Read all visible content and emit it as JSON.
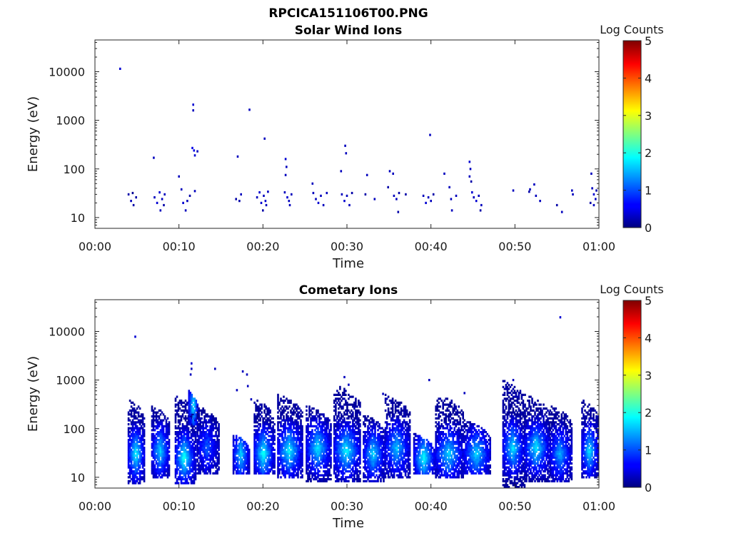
{
  "figure": {
    "title": "RPCICA151106T00.PNG"
  },
  "chart_data": [
    {
      "type": "heatmap",
      "title": "Solar Wind Ions",
      "xlabel": "Time",
      "ylabel": "Energy (eV)",
      "yscale": "log",
      "xlim": [
        0,
        60
      ],
      "ylim": [
        6,
        45000
      ],
      "x_ticks": [
        "00:00",
        "00:10",
        "00:20",
        "00:30",
        "00:40",
        "00:50",
        "01:00"
      ],
      "y_ticks": [
        "10",
        "100",
        "1000",
        "10000"
      ],
      "colorbar": {
        "label": "Log Counts",
        "range": [
          0,
          5
        ],
        "ticks": [
          "0",
          "1",
          "2",
          "3",
          "4",
          "5"
        ],
        "colormap": "jet"
      },
      "points": [
        [
          3.0,
          11500,
          0.4
        ],
        [
          4.0,
          30,
          0.2
        ],
        [
          4.3,
          22,
          0.3
        ],
        [
          4.6,
          18,
          0.2
        ],
        [
          4.9,
          26,
          0.2
        ],
        [
          4.5,
          32,
          0.1
        ],
        [
          7.0,
          170,
          0.3
        ],
        [
          7.1,
          26,
          0.3
        ],
        [
          7.4,
          20,
          0.4
        ],
        [
          7.7,
          33,
          0.4
        ],
        [
          8.0,
          24,
          0.3
        ],
        [
          7.8,
          14,
          0.3
        ],
        [
          8.3,
          30,
          0.3
        ],
        [
          8.2,
          18,
          0.2
        ],
        [
          10.0,
          70,
          0.3
        ],
        [
          10.3,
          38,
          0.3
        ],
        [
          10.5,
          20,
          0.4
        ],
        [
          10.8,
          14,
          0.3
        ],
        [
          11.0,
          22,
          0.3
        ],
        [
          11.3,
          28,
          0.2
        ],
        [
          11.7,
          2100,
          0.4
        ],
        [
          11.7,
          1600,
          0.3
        ],
        [
          11.6,
          270,
          0.5
        ],
        [
          11.8,
          240,
          0.5
        ],
        [
          11.9,
          190,
          0.4
        ],
        [
          12.2,
          230,
          0.3
        ],
        [
          11.9,
          35,
          0.3
        ],
        [
          17.0,
          180,
          0.3
        ],
        [
          16.8,
          24,
          0.2
        ],
        [
          17.4,
          30,
          0.3
        ],
        [
          17.2,
          22,
          0.2
        ],
        [
          18.4,
          1650,
          0.3
        ],
        [
          20.2,
          420,
          0.3
        ],
        [
          19.3,
          26,
          0.3
        ],
        [
          19.6,
          33,
          0.4
        ],
        [
          19.8,
          20,
          0.4
        ],
        [
          20.1,
          28,
          0.3
        ],
        [
          20.3,
          22,
          0.4
        ],
        [
          20.6,
          34,
          0.3
        ],
        [
          20.4,
          18,
          0.3
        ],
        [
          20.0,
          14,
          0.2
        ],
        [
          22.7,
          160,
          0.4
        ],
        [
          22.8,
          110,
          0.3
        ],
        [
          22.7,
          75,
          0.3
        ],
        [
          22.6,
          33,
          0.3
        ],
        [
          22.9,
          26,
          0.4
        ],
        [
          23.1,
          22,
          0.3
        ],
        [
          23.4,
          30,
          0.3
        ],
        [
          23.2,
          18,
          0.3
        ],
        [
          25.9,
          50,
          0.3
        ],
        [
          26.0,
          32,
          0.3
        ],
        [
          26.3,
          24,
          0.3
        ],
        [
          26.6,
          20,
          0.4
        ],
        [
          26.9,
          28,
          0.3
        ],
        [
          27.2,
          18,
          0.3
        ],
        [
          27.6,
          32,
          0.3
        ],
        [
          29.8,
          300,
          0.3
        ],
        [
          29.9,
          210,
          0.3
        ],
        [
          29.3,
          90,
          0.3
        ],
        [
          29.4,
          30,
          0.3
        ],
        [
          29.7,
          22,
          0.4
        ],
        [
          30.0,
          28,
          0.3
        ],
        [
          30.3,
          18,
          0.3
        ],
        [
          30.6,
          32,
          0.2
        ],
        [
          32.4,
          75,
          0.3
        ],
        [
          32.2,
          30,
          0.2
        ],
        [
          33.3,
          24,
          0.3
        ],
        [
          35.1,
          90,
          0.3
        ],
        [
          35.5,
          80,
          0.3
        ],
        [
          34.9,
          42,
          0.2
        ],
        [
          35.6,
          28,
          0.3
        ],
        [
          35.9,
          24,
          0.3
        ],
        [
          36.2,
          32,
          0.2
        ],
        [
          36.1,
          13,
          0.2
        ],
        [
          37.0,
          30,
          0.2
        ],
        [
          39.9,
          500,
          0.3
        ],
        [
          39.1,
          28,
          0.3
        ],
        [
          39.4,
          20,
          0.4
        ],
        [
          39.7,
          26,
          0.3
        ],
        [
          40.0,
          22,
          0.3
        ],
        [
          40.3,
          30,
          0.2
        ],
        [
          41.6,
          80,
          0.3
        ],
        [
          42.2,
          42,
          0.3
        ],
        [
          42.4,
          24,
          0.3
        ],
        [
          42.5,
          14,
          0.3
        ],
        [
          43.0,
          28,
          0.3
        ],
        [
          44.6,
          140,
          0.4
        ],
        [
          44.7,
          100,
          0.3
        ],
        [
          44.6,
          70,
          0.3
        ],
        [
          44.8,
          55,
          0.2
        ],
        [
          44.9,
          33,
          0.4
        ],
        [
          45.1,
          26,
          0.3
        ],
        [
          45.4,
          22,
          0.4
        ],
        [
          45.7,
          28,
          0.3
        ],
        [
          46.0,
          18,
          0.3
        ],
        [
          45.9,
          14,
          0.2
        ],
        [
          49.8,
          36,
          0.3
        ],
        [
          51.8,
          38,
          0.3
        ],
        [
          51.7,
          34,
          0.2
        ],
        [
          52.3,
          48,
          0.3
        ],
        [
          52.5,
          28,
          0.3
        ],
        [
          53.0,
          22,
          0.3
        ],
        [
          55.0,
          18,
          0.2
        ],
        [
          55.6,
          13,
          0.3
        ],
        [
          56.8,
          36,
          0.3
        ],
        [
          56.9,
          30,
          0.3
        ],
        [
          59.1,
          80,
          0.3
        ],
        [
          59.2,
          40,
          0.3
        ],
        [
          59.4,
          30,
          0.4
        ],
        [
          59.6,
          24,
          0.3
        ],
        [
          59.7,
          36,
          0.2
        ],
        [
          59.4,
          18,
          0.3
        ],
        [
          59.0,
          20,
          0.2
        ]
      ]
    },
    {
      "type": "heatmap",
      "title": "Cometary Ions",
      "xlabel": "Time",
      "ylabel": "Energy (eV)",
      "yscale": "log",
      "xlim": [
        0,
        60
      ],
      "ylim": [
        6,
        45000
      ],
      "x_ticks": [
        "00:00",
        "00:10",
        "00:20",
        "00:30",
        "00:40",
        "00:50",
        "01:00"
      ],
      "y_ticks": [
        "10",
        "100",
        "1000",
        "10000"
      ],
      "colorbar": {
        "label": "Log Counts",
        "range": [
          0,
          5
        ],
        "ticks": [
          "0",
          "1",
          "2",
          "3",
          "4",
          "5"
        ],
        "colormap": "jet"
      },
      "features": [
        {
          "x": 4.0,
          "w": 2.0,
          "emin": 7,
          "emax": 400,
          "peak": 1.8,
          "peak_e": 30
        },
        {
          "x": 6.8,
          "w": 2.2,
          "emin": 10,
          "emax": 300,
          "peak": 1.6,
          "peak_e": 35
        },
        {
          "x": 9.6,
          "w": 2.4,
          "emin": 7,
          "emax": 500,
          "peak": 1.9,
          "peak_e": 25
        },
        {
          "x": 11.2,
          "w": 1.2,
          "emin": 120,
          "emax": 600,
          "peak": 1.8,
          "peak_e": 300
        },
        {
          "x": 12.2,
          "w": 2.6,
          "emin": 12,
          "emax": 300,
          "peak": 1.0,
          "peak_e": 40
        },
        {
          "x": 16.5,
          "w": 2.0,
          "emin": 12,
          "emax": 80,
          "peak": 1.6,
          "peak_e": 30
        },
        {
          "x": 19.0,
          "w": 2.4,
          "emin": 12,
          "emax": 400,
          "peak": 1.9,
          "peak_e": 30
        },
        {
          "x": 21.8,
          "w": 3.0,
          "emin": 10,
          "emax": 500,
          "peak": 1.8,
          "peak_e": 35
        },
        {
          "x": 25.2,
          "w": 3.0,
          "emin": 8,
          "emax": 300,
          "peak": 1.7,
          "peak_e": 40
        },
        {
          "x": 28.5,
          "w": 3.2,
          "emin": 8,
          "emax": 800,
          "peak": 1.8,
          "peak_e": 35
        },
        {
          "x": 32.0,
          "w": 2.6,
          "emin": 8,
          "emax": 200,
          "peak": 1.6,
          "peak_e": 30
        },
        {
          "x": 34.6,
          "w": 3.0,
          "emin": 10,
          "emax": 500,
          "peak": 1.5,
          "peak_e": 40
        },
        {
          "x": 38.0,
          "w": 2.6,
          "emin": 12,
          "emax": 80,
          "peak": 1.8,
          "peak_e": 25
        },
        {
          "x": 40.6,
          "w": 3.4,
          "emin": 10,
          "emax": 500,
          "peak": 1.6,
          "peak_e": 30
        },
        {
          "x": 44.0,
          "w": 3.2,
          "emin": 12,
          "emax": 150,
          "peak": 1.6,
          "peak_e": 30
        },
        {
          "x": 48.6,
          "w": 2.6,
          "emin": 6,
          "emax": 1000,
          "peak": 1.7,
          "peak_e": 40
        },
        {
          "x": 51.2,
          "w": 3.0,
          "emin": 8,
          "emax": 500,
          "peak": 1.7,
          "peak_e": 40
        },
        {
          "x": 54.2,
          "w": 2.6,
          "emin": 8,
          "emax": 300,
          "peak": 1.4,
          "peak_e": 30
        },
        {
          "x": 58.0,
          "w": 2.0,
          "emin": 10,
          "emax": 400,
          "peak": 1.7,
          "peak_e": 35
        }
      ],
      "points": [
        [
          4.8,
          7800,
          0.4
        ],
        [
          11.5,
          2200,
          0.4
        ],
        [
          11.5,
          1700,
          0.3
        ],
        [
          11.4,
          1300,
          0.3
        ],
        [
          14.3,
          1700,
          0.3
        ],
        [
          16.9,
          620,
          0.3
        ],
        [
          17.6,
          1500,
          0.3
        ],
        [
          18.1,
          1300,
          0.3
        ],
        [
          18.2,
          750,
          0.3
        ],
        [
          18.6,
          400,
          0.3
        ],
        [
          29.7,
          1150,
          0.3
        ],
        [
          30.2,
          800,
          0.3
        ],
        [
          34.3,
          520,
          0.3
        ],
        [
          39.8,
          1000,
          0.3
        ],
        [
          44.0,
          540,
          0.3
        ],
        [
          49.8,
          1000,
          0.3
        ],
        [
          55.4,
          19500,
          0.4
        ]
      ]
    }
  ]
}
